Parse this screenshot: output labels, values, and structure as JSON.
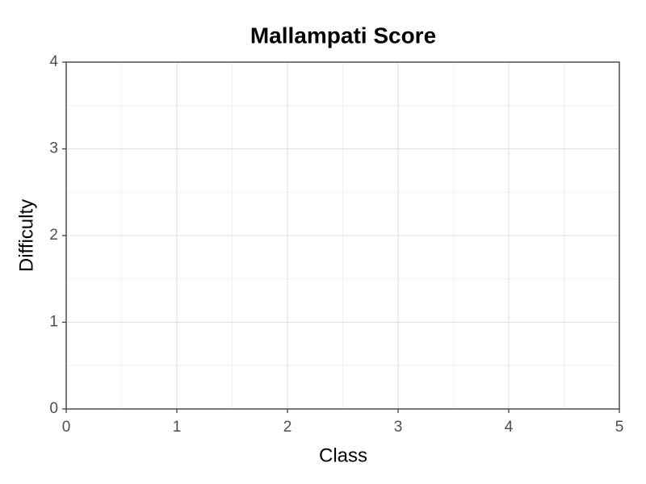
{
  "chart_data": {
    "type": "scatter",
    "title": "Mallampati Score",
    "x_label": "Class",
    "y_label": "Difficulty",
    "xlim": [
      0,
      5
    ],
    "ylim": [
      0,
      4
    ],
    "xticks": [
      0,
      1,
      2,
      3,
      4,
      5
    ],
    "yticks": [
      0,
      1,
      2,
      3,
      4
    ],
    "grid": true,
    "minor_grid": true
  }
}
